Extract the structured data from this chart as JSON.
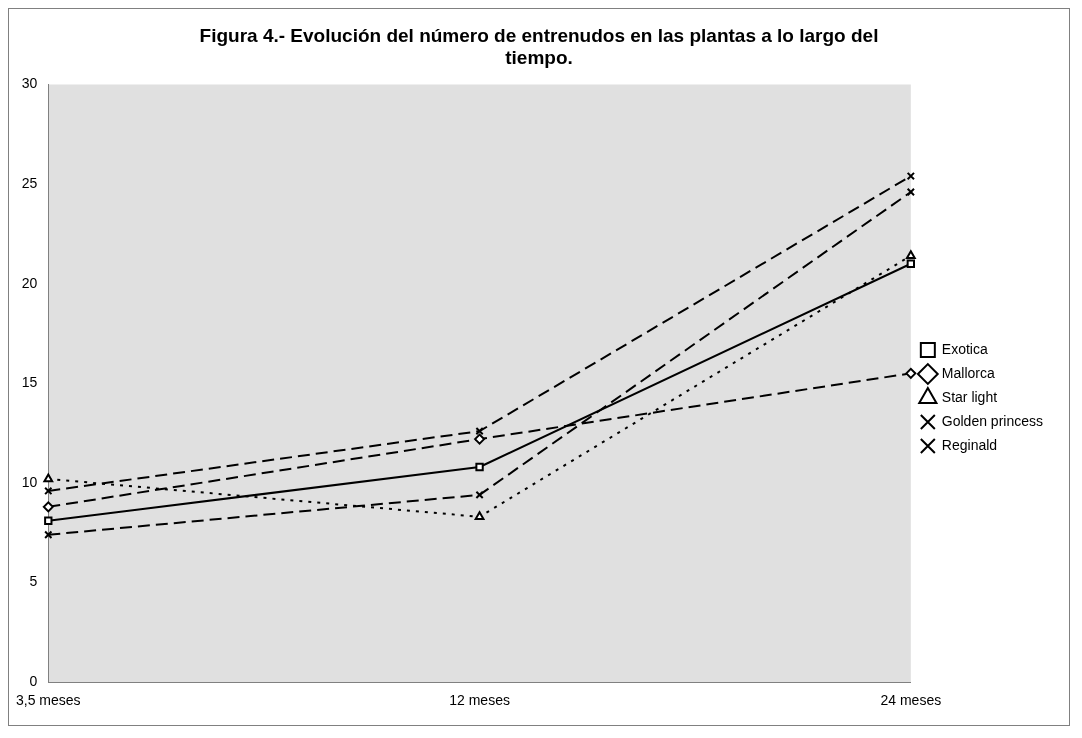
{
  "chart_data": {
    "type": "line",
    "title": "Figura 4.- Evolución del número de entrenudos en las plantas a lo largo del tiempo.",
    "categories": [
      "3,5 meses",
      "12 meses",
      "24 meses"
    ],
    "series": [
      {
        "name": "Exotica",
        "color": "#000000",
        "values": [
          8.1,
          10.8,
          21.0
        ],
        "marker": "square",
        "line_style": "solid"
      },
      {
        "name": "Mallorca",
        "color": "#000000",
        "values": [
          8.8,
          12.2,
          15.5
        ],
        "marker": "diamond",
        "line_style": "dashed"
      },
      {
        "name": "Star light",
        "color": "#000000",
        "values": [
          10.2,
          8.3,
          21.4
        ],
        "marker": "triangle",
        "line_style": "dotted"
      },
      {
        "name": "Golden princess",
        "color": "#000000",
        "values": [
          7.4,
          9.4,
          24.6
        ],
        "marker": "cross",
        "line_style": "dashed"
      },
      {
        "name": "Reginald",
        "color": "#000000",
        "values": [
          9.6,
          12.6,
          25.4
        ],
        "marker": "cross",
        "line_style": "dashed"
      }
    ],
    "ylim": [
      0,
      30
    ],
    "yticks": [
      0,
      5,
      10,
      15,
      20,
      25,
      30
    ],
    "grid": false,
    "legend": "right"
  }
}
